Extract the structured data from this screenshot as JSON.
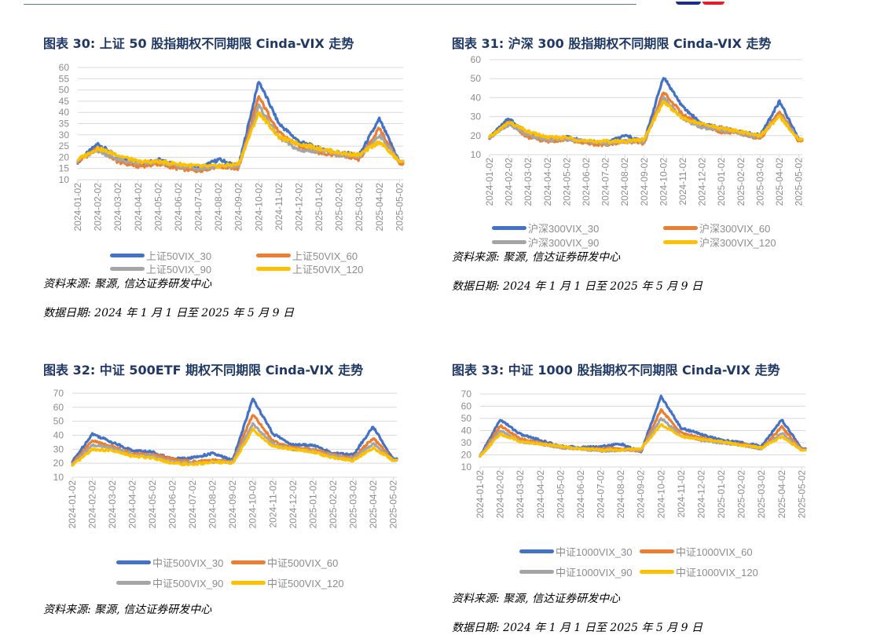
{
  "header": {
    "brand_colors": [
      "#1c2f87",
      "#e31e24"
    ],
    "rule_color": "#5a7a99"
  },
  "series_colors": {
    "VIX_30": "#4472c4",
    "VIX_60": "#ed7d31",
    "VIX_90": "#a5a5a5",
    "VIX_120": "#ffc000"
  },
  "panels": [
    {
      "title": "图表 30:   上证 50 股指期权不同期限 Cinda-VIX 走势",
      "legend": [
        "上证50VIX_30",
        "上证50VIX_60",
        "上证50VIX_90",
        "上证50VIX_120"
      ],
      "source": "资料来源:  聚源,  信达证券研发中心",
      "date_range": "数据日期:  2024 年 1 月 1 日至 2025 年 5 月 9 日"
    },
    {
      "title": "图表 31:  沪深 300 股指期权不同期限 Cinda-VIX 走势",
      "legend": [
        "沪深300VIX_30",
        "沪深300VIX_60",
        "沪深300VIX_90",
        "沪深300VIX_120"
      ],
      "source": "资料来源:  聚源,  信达证券研发中心",
      "date_range": "数据日期:  2024 年 1 月 1 日至 2025 年 5 月 9 日"
    },
    {
      "title": "图表 32:   中证 500ETF 期权不同期限 Cinda-VIX 走势",
      "legend": [
        "中证500VIX_30",
        "中证500VIX_60",
        "中证500VIX_90",
        "中证500VIX_120"
      ],
      "source": "资料来源:  聚源,  信达证券研发中心"
    },
    {
      "title": "图表 33:  中证 1000 股指期权不同期限 Cinda-VIX 走势",
      "legend": [
        "中证1000VIX_30",
        "中证1000VIX_60",
        "中证1000VIX_90",
        "中证1000VIX_120"
      ],
      "source": "资料来源:  聚源,  信达证券研发中心",
      "date_range": "数据日期:  2024 年 1 月 1 日至 2025 年 5 月 9 日"
    }
  ],
  "chart_data": [
    {
      "type": "line",
      "title": "图表 30: 上证 50 股指期权不同期限 Cinda-VIX 走势",
      "categories": [
        "2024-01-02",
        "2024-02-02",
        "2024-03-02",
        "2024-04-02",
        "2024-05-02",
        "2024-06-02",
        "2024-07-02",
        "2024-08-02",
        "2024-09-02",
        "2024-10-02",
        "2024-11-02",
        "2024-12-02",
        "2025-01-02",
        "2025-02-02",
        "2025-03-02",
        "2025-04-02",
        "2025-05-02"
      ],
      "yticks": [
        10,
        15,
        20,
        25,
        30,
        35,
        40,
        45,
        50,
        55,
        60
      ],
      "ylim": [
        10,
        60
      ],
      "grid": true,
      "legend_position": "bottom",
      "series": [
        {
          "name": "上证50VIX_30",
          "values": [
            18,
            26,
            20,
            17,
            19,
            16,
            15,
            19,
            16,
            54,
            35,
            27,
            24,
            22,
            21,
            37,
            18
          ]
        },
        {
          "name": "上证50VIX_60",
          "values": [
            18,
            24,
            18,
            16,
            17,
            15,
            14,
            16,
            15,
            47,
            31,
            25,
            22,
            21,
            19,
            33,
            17
          ]
        },
        {
          "name": "上证50VIX_90",
          "values": [
            19,
            23,
            19,
            17,
            18,
            16,
            15,
            16,
            16,
            43,
            29,
            23,
            23,
            21,
            20,
            30,
            18
          ]
        },
        {
          "name": "上证50VIX_120",
          "values": [
            19,
            24,
            21,
            18,
            18,
            17,
            16,
            16,
            17,
            40,
            29,
            26,
            24,
            22,
            21,
            27,
            18
          ]
        }
      ]
    },
    {
      "type": "line",
      "title": "图表 31: 沪深 300 股指期权不同期限 Cinda-VIX 走势",
      "categories": [
        "2024-01-02",
        "2024-02-02",
        "2024-03-02",
        "2024-04-02",
        "2024-05-02",
        "2024-06-02",
        "2024-07-02",
        "2024-08-02",
        "2024-09-02",
        "2024-10-02",
        "2024-11-02",
        "2024-12-02",
        "2025-01-02",
        "2025-02-02",
        "2025-03-02",
        "2025-04-02",
        "2025-05-02"
      ],
      "yticks": [
        10,
        20,
        30,
        40,
        50,
        60
      ],
      "ylim": [
        10,
        60
      ],
      "grid": true,
      "legend_position": "bottom",
      "series": [
        {
          "name": "沪深300VIX_30",
          "values": [
            19,
            29,
            21,
            18,
            19,
            17,
            16,
            20,
            17,
            51,
            35,
            26,
            24,
            22,
            20,
            38,
            18
          ]
        },
        {
          "name": "沪深300VIX_60",
          "values": [
            19,
            27,
            19,
            17,
            18,
            16,
            15,
            17,
            16,
            43,
            31,
            25,
            22,
            21,
            18,
            33,
            17
          ]
        },
        {
          "name": "沪深300VIX_90",
          "values": [
            19,
            26,
            20,
            18,
            18,
            17,
            16,
            17,
            17,
            40,
            29,
            24,
            23,
            21,
            19,
            31,
            18
          ]
        },
        {
          "name": "沪深300VIX_120",
          "values": [
            19,
            27,
            22,
            19,
            19,
            17,
            17,
            17,
            18,
            38,
            29,
            26,
            24,
            22,
            20,
            30,
            18
          ]
        }
      ]
    },
    {
      "type": "line",
      "title": "图表 32: 中证 500ETF 期权不同期限 Cinda-VIX 走势",
      "categories": [
        "2024-01-02",
        "2024-02-02",
        "2024-03-02",
        "2024-04-02",
        "2024-05-02",
        "2024-06-02",
        "2024-07-02",
        "2024-08-02",
        "2024-09-02",
        "2024-10-02",
        "2024-11-02",
        "2024-12-02",
        "2025-01-02",
        "2025-02-02",
        "2025-03-02",
        "2025-04-02",
        "2025-05-02"
      ],
      "yticks": [
        10,
        20,
        30,
        40,
        50,
        60,
        70
      ],
      "ylim": [
        10,
        70
      ],
      "grid": true,
      "legend_position": "bottom",
      "series": [
        {
          "name": "中证500VIX_30",
          "values": [
            21,
            41,
            35,
            29,
            28,
            23,
            24,
            27,
            22,
            66,
            41,
            33,
            33,
            27,
            26,
            46,
            23
          ]
        },
        {
          "name": "中证500VIX_60",
          "values": [
            20,
            36,
            32,
            27,
            26,
            23,
            21,
            22,
            21,
            55,
            36,
            31,
            30,
            26,
            24,
            38,
            22
          ]
        },
        {
          "name": "中证500VIX_90",
          "values": [
            19,
            33,
            31,
            26,
            25,
            21,
            20,
            21,
            21,
            48,
            34,
            30,
            29,
            25,
            23,
            34,
            22
          ]
        },
        {
          "name": "中证500VIX_120",
          "values": [
            18,
            30,
            29,
            25,
            24,
            20,
            19,
            21,
            20,
            44,
            32,
            30,
            28,
            24,
            22,
            31,
            22
          ]
        }
      ]
    },
    {
      "type": "line",
      "title": "图表 33: 中证 1000 股指期权不同期限 Cinda-VIX 走势",
      "categories": [
        "2024-01-02",
        "2024-02-02",
        "2024-03-02",
        "2024-04-02",
        "2024-05-02",
        "2024-06-02",
        "2024-07-02",
        "2024-08-02",
        "2024-09-02",
        "2024-10-02",
        "2024-11-02",
        "2024-12-02",
        "2025-01-02",
        "2025-02-02",
        "2025-03-02",
        "2025-04-02",
        "2025-05-02"
      ],
      "yticks": [
        10,
        20,
        30,
        40,
        50,
        60,
        70
      ],
      "ylim": [
        10,
        70
      ],
      "grid": true,
      "legend_position": "bottom",
      "series": [
        {
          "name": "中证1000VIX_30",
          "values": [
            19,
            49,
            37,
            32,
            27,
            26,
            27,
            29,
            22,
            68,
            42,
            37,
            32,
            30,
            27,
            49,
            25
          ]
        },
        {
          "name": "中证1000VIX_60",
          "values": [
            19,
            44,
            33,
            30,
            26,
            25,
            25,
            25,
            23,
            57,
            38,
            34,
            30,
            29,
            25,
            43,
            24
          ]
        },
        {
          "name": "中证1000VIX_90",
          "values": [
            19,
            40,
            31,
            29,
            26,
            25,
            23,
            24,
            24,
            50,
            36,
            32,
            30,
            28,
            25,
            38,
            24
          ]
        },
        {
          "name": "中证1000VIX_120",
          "values": [
            19,
            37,
            31,
            29,
            27,
            25,
            24,
            24,
            25,
            45,
            35,
            33,
            31,
            28,
            26,
            35,
            24
          ]
        }
      ]
    }
  ]
}
